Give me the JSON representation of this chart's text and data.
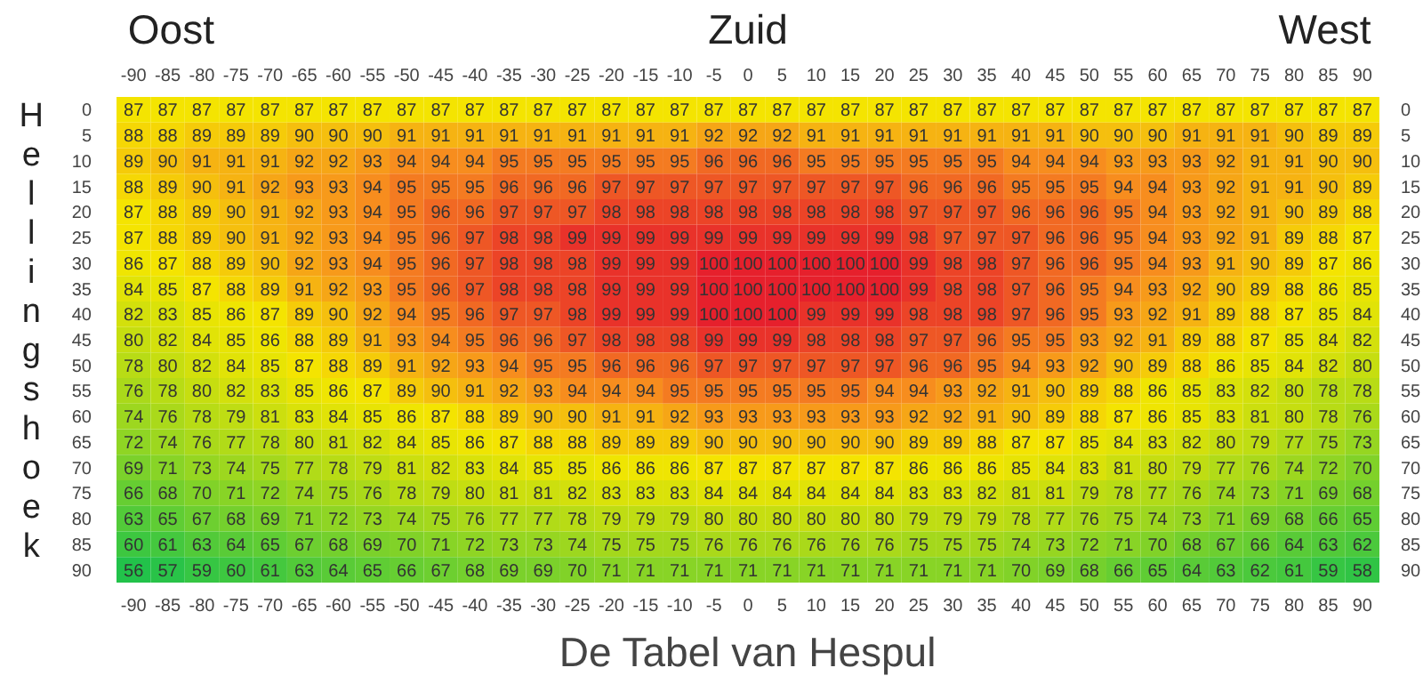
{
  "chart_data": {
    "type": "heatmap",
    "title": "De Tabel van Hespul",
    "ylabel": "Hellingshoek",
    "annotations": [
      "Oost",
      "Zuid",
      "West"
    ],
    "data_labels": true,
    "categories": [
      "-90",
      "-85",
      "-80",
      "-75",
      "-70",
      "-65",
      "-60",
      "-55",
      "-50",
      "-45",
      "-40",
      "-35",
      "-30",
      "-25",
      "-20",
      "-15",
      "-10",
      "-5",
      "0",
      "5",
      "10",
      "15",
      "20",
      "25",
      "30",
      "35",
      "40",
      "45",
      "50",
      "55",
      "60",
      "65",
      "70",
      "75",
      "80",
      "85",
      "90"
    ],
    "y_categories": [
      "0",
      "5",
      "10",
      "15",
      "20",
      "25",
      "30",
      "35",
      "40",
      "45",
      "50",
      "55",
      "60",
      "65",
      "70",
      "75",
      "80",
      "85",
      "90"
    ],
    "y2_categories": [
      "0",
      "5",
      "10",
      "15",
      "20",
      "25",
      "30",
      "35",
      "40",
      "45",
      "50",
      "55",
      "60",
      "65",
      "70",
      "75",
      "80",
      "85",
      "90"
    ],
    "cells": [
      [
        87,
        87,
        87,
        87,
        87,
        87,
        87,
        87,
        87,
        87,
        87,
        87,
        87,
        87,
        87,
        87,
        87,
        87,
        87,
        87,
        87,
        87,
        87,
        87,
        87,
        87,
        87,
        87,
        87,
        87,
        87,
        87,
        87,
        87,
        87,
        87,
        87
      ],
      [
        88,
        88,
        89,
        89,
        89,
        90,
        90,
        90,
        91,
        91,
        91,
        91,
        91,
        91,
        91,
        91,
        91,
        92,
        92,
        92,
        91,
        91,
        91,
        91,
        91,
        91,
        91,
        91,
        90,
        90,
        90,
        91,
        91,
        91,
        90,
        89,
        89
      ],
      [
        89,
        90,
        91,
        91,
        91,
        92,
        92,
        93,
        94,
        94,
        94,
        95,
        95,
        95,
        95,
        95,
        95,
        96,
        96,
        96,
        95,
        95,
        95,
        95,
        95,
        95,
        94,
        94,
        94,
        93,
        93,
        93,
        92,
        91,
        91,
        90,
        90
      ],
      [
        88,
        89,
        90,
        91,
        92,
        93,
        93,
        94,
        95,
        95,
        95,
        96,
        96,
        96,
        97,
        97,
        97,
        97,
        97,
        97,
        97,
        97,
        97,
        96,
        96,
        96,
        95,
        95,
        95,
        94,
        94,
        93,
        92,
        91,
        91,
        90,
        89
      ],
      [
        87,
        88,
        89,
        90,
        91,
        92,
        93,
        94,
        95,
        96,
        96,
        97,
        97,
        97,
        98,
        98,
        98,
        98,
        98,
        98,
        98,
        98,
        98,
        97,
        97,
        97,
        96,
        96,
        96,
        95,
        94,
        93,
        92,
        91,
        90,
        89,
        88
      ],
      [
        87,
        88,
        89,
        90,
        91,
        92,
        93,
        94,
        95,
        96,
        97,
        98,
        98,
        99,
        99,
        99,
        99,
        99,
        99,
        99,
        99,
        99,
        99,
        98,
        97,
        97,
        97,
        96,
        96,
        95,
        94,
        93,
        92,
        91,
        89,
        88,
        87
      ],
      [
        86,
        87,
        88,
        89,
        90,
        92,
        93,
        94,
        95,
        96,
        97,
        98,
        98,
        98,
        99,
        99,
        99,
        100,
        100,
        100,
        100,
        100,
        100,
        99,
        98,
        98,
        97,
        96,
        96,
        95,
        94,
        93,
        91,
        90,
        89,
        87,
        86
      ],
      [
        84,
        85,
        87,
        88,
        89,
        91,
        92,
        93,
        95,
        96,
        97,
        98,
        98,
        98,
        99,
        99,
        99,
        100,
        100,
        100,
        100,
        100,
        100,
        99,
        98,
        98,
        97,
        96,
        95,
        94,
        93,
        92,
        90,
        89,
        88,
        86,
        85
      ],
      [
        82,
        83,
        85,
        86,
        87,
        89,
        90,
        92,
        94,
        95,
        96,
        97,
        97,
        98,
        99,
        99,
        99,
        100,
        100,
        100,
        99,
        99,
        99,
        98,
        98,
        98,
        97,
        96,
        95,
        93,
        92,
        91,
        89,
        88,
        87,
        85,
        84
      ],
      [
        80,
        82,
        84,
        85,
        86,
        88,
        89,
        91,
        93,
        94,
        95,
        96,
        96,
        97,
        98,
        98,
        98,
        99,
        99,
        99,
        98,
        98,
        98,
        97,
        97,
        96,
        95,
        95,
        93,
        92,
        91,
        89,
        88,
        87,
        85,
        84,
        82
      ],
      [
        78,
        80,
        82,
        84,
        85,
        87,
        88,
        89,
        91,
        92,
        93,
        94,
        95,
        95,
        96,
        96,
        96,
        97,
        97,
        97,
        97,
        97,
        97,
        96,
        96,
        95,
        94,
        93,
        92,
        90,
        89,
        88,
        86,
        85,
        84,
        82,
        80
      ],
      [
        76,
        78,
        80,
        82,
        83,
        85,
        86,
        87,
        89,
        90,
        91,
        92,
        93,
        94,
        94,
        94,
        95,
        95,
        95,
        95,
        95,
        95,
        94,
        94,
        93,
        92,
        91,
        90,
        89,
        88,
        86,
        85,
        83,
        82,
        80,
        78,
        78
      ],
      [
        74,
        76,
        78,
        79,
        81,
        83,
        84,
        85,
        86,
        87,
        88,
        89,
        90,
        90,
        91,
        91,
        92,
        93,
        93,
        93,
        93,
        93,
        93,
        92,
        92,
        91,
        90,
        89,
        88,
        87,
        86,
        85,
        83,
        81,
        80,
        78,
        76
      ],
      [
        72,
        74,
        76,
        77,
        78,
        80,
        81,
        82,
        84,
        85,
        86,
        87,
        88,
        88,
        89,
        89,
        89,
        90,
        90,
        90,
        90,
        90,
        90,
        89,
        89,
        88,
        87,
        87,
        85,
        84,
        83,
        82,
        80,
        79,
        77,
        75,
        73
      ],
      [
        69,
        71,
        73,
        74,
        75,
        77,
        78,
        79,
        81,
        82,
        83,
        84,
        85,
        85,
        86,
        86,
        86,
        87,
        87,
        87,
        87,
        87,
        87,
        86,
        86,
        86,
        85,
        84,
        83,
        81,
        80,
        79,
        77,
        76,
        74,
        72,
        70
      ],
      [
        66,
        68,
        70,
        71,
        72,
        74,
        75,
        76,
        78,
        79,
        80,
        81,
        81,
        82,
        83,
        83,
        83,
        84,
        84,
        84,
        84,
        84,
        84,
        83,
        83,
        82,
        81,
        81,
        79,
        78,
        77,
        76,
        74,
        73,
        71,
        69,
        68
      ],
      [
        63,
        65,
        67,
        68,
        69,
        71,
        72,
        73,
        74,
        75,
        76,
        77,
        77,
        78,
        79,
        79,
        79,
        80,
        80,
        80,
        80,
        80,
        80,
        79,
        79,
        79,
        78,
        77,
        76,
        75,
        74,
        73,
        71,
        69,
        68,
        66,
        65
      ],
      [
        60,
        61,
        63,
        64,
        65,
        67,
        68,
        69,
        70,
        71,
        72,
        73,
        73,
        74,
        75,
        75,
        75,
        76,
        76,
        76,
        76,
        76,
        76,
        75,
        75,
        75,
        74,
        73,
        72,
        71,
        70,
        68,
        67,
        66,
        64,
        63,
        62
      ],
      [
        56,
        57,
        59,
        60,
        61,
        63,
        64,
        65,
        66,
        67,
        68,
        69,
        69,
        70,
        71,
        71,
        71,
        71,
        71,
        71,
        71,
        71,
        71,
        71,
        71,
        71,
        70,
        69,
        68,
        66,
        65,
        64,
        63,
        62,
        61,
        59,
        58
      ]
    ]
  }
}
